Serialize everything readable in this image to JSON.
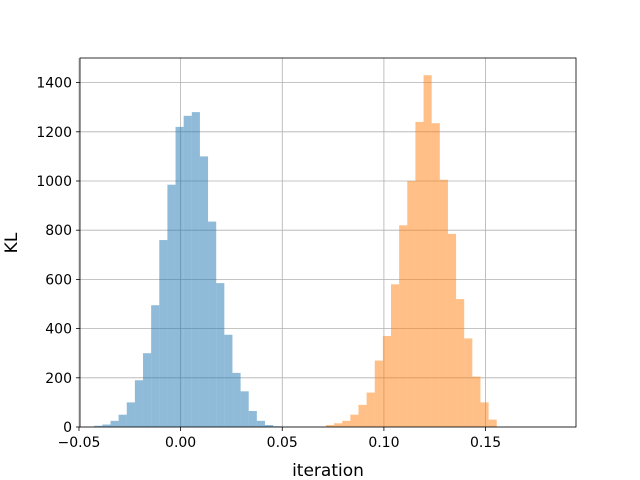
{
  "chart_data": {
    "type": "histogram",
    "title": "",
    "xlabel": "iteration",
    "ylabel": "KL",
    "xlim": [
      -0.0495,
      0.1945
    ],
    "ylim": [
      0,
      1500
    ],
    "xticks": [
      -0.05,
      0.0,
      0.05,
      0.1,
      0.15
    ],
    "xtick_labels": [
      "−0.05",
      "0.00",
      "0.05",
      "0.10",
      "0.15"
    ],
    "yticks": [
      0,
      200,
      400,
      600,
      800,
      1000,
      1200,
      1400
    ],
    "ytick_labels": [
      "0",
      "200",
      "400",
      "600",
      "800",
      "1000",
      "1200",
      "1400"
    ],
    "grid": true,
    "legend": "none",
    "series": [
      {
        "color": "#1f77b4",
        "alpha": 0.5,
        "bin_start": -0.0425,
        "bin_width": 0.004,
        "values": [
          5,
          10,
          25,
          50,
          100,
          190,
          300,
          495,
          760,
          985,
          1220,
          1265,
          1280,
          1100,
          835,
          585,
          375,
          220,
          145,
          65,
          25,
          8,
          3
        ]
      },
      {
        "color": "#ff7f0e",
        "alpha": 0.5,
        "bin_start": 0.0715,
        "bin_width": 0.004,
        "values": [
          8,
          15,
          25,
          50,
          90,
          140,
          270,
          370,
          580,
          820,
          1000,
          1240,
          1430,
          1235,
          1005,
          785,
          520,
          360,
          205,
          100,
          30
        ]
      }
    ]
  }
}
